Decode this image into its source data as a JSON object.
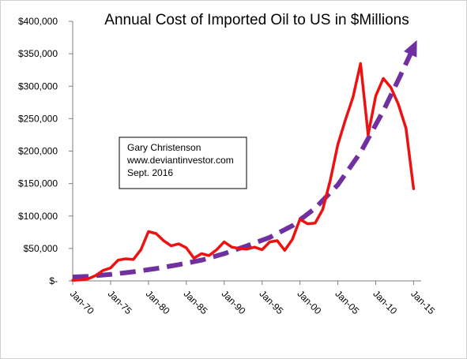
{
  "chart_data": {
    "type": "line",
    "title": "Annual Cost of Imported Oil to US in $Millions",
    "xlabel": "",
    "ylabel": "",
    "ylim": [
      0,
      400000
    ],
    "yticks": [
      0,
      50000,
      100000,
      150000,
      200000,
      250000,
      300000,
      350000,
      400000
    ],
    "ytick_labels": [
      "$-",
      "$50,000",
      "$100,000",
      "$150,000",
      "$200,000",
      "$250,000",
      "$300,000",
      "$350,000",
      "$400,000"
    ],
    "xlim": [
      1970,
      2016
    ],
    "xtick_labels": [
      "Jan-70",
      "Jan-75",
      "Jan-80",
      "Jan-85",
      "Jan-90",
      "Jan-95",
      "Jan-00",
      "Jan-05",
      "Jan-10",
      "Jan-15"
    ],
    "xtick_values": [
      1970,
      1975,
      1980,
      1985,
      1990,
      1995,
      2000,
      2005,
      2010,
      2015
    ],
    "grid": false,
    "legend": "none",
    "series": [
      {
        "role": "actual",
        "color": "#ee1111",
        "style": "solid",
        "x": [
          1970,
          1971,
          1972,
          1973,
          1974,
          1975,
          1976,
          1977,
          1978,
          1979,
          1980,
          1981,
          1982,
          1983,
          1984,
          1985,
          1986,
          1987,
          1988,
          1989,
          1990,
          1991,
          1992,
          1993,
          1994,
          1995,
          1996,
          1997,
          1998,
          1999,
          2000,
          2001,
          2002,
          2003,
          2004,
          2005,
          2006,
          2007,
          2008,
          2009,
          2010,
          2011,
          2012,
          2013,
          2014,
          2015
        ],
        "values": [
          1000,
          1500,
          3000,
          8000,
          16000,
          20000,
          32000,
          34000,
          33000,
          48000,
          76000,
          73000,
          62000,
          54000,
          57000,
          51000,
          35000,
          42000,
          39000,
          48000,
          60000,
          52000,
          50000,
          49000,
          52000,
          48000,
          60000,
          62000,
          47000,
          64000,
          95000,
          88000,
          89000,
          110000,
          155000,
          210000,
          248000,
          283000,
          335000,
          225000,
          285000,
          312000,
          298000,
          272000,
          235000,
          142000
        ]
      },
      {
        "role": "trend",
        "color": "#7030a0",
        "style": "dashed",
        "x": [
          1970,
          1972,
          1975,
          1978,
          1981,
          1984,
          1987,
          1990,
          1993,
          1996,
          1999,
          2002,
          2005,
          2008,
          2011,
          2013,
          2014,
          2015
        ],
        "values": [
          6000,
          7000,
          10000,
          14000,
          19000,
          25000,
          32000,
          42000,
          54000,
          67000,
          85000,
          112000,
          148000,
          198000,
          262000,
          310000,
          335000,
          360000
        ]
      }
    ],
    "annotation": [
      "Gary Christenson",
      "www.deviantinvestor.com",
      "Sept. 2016"
    ]
  }
}
